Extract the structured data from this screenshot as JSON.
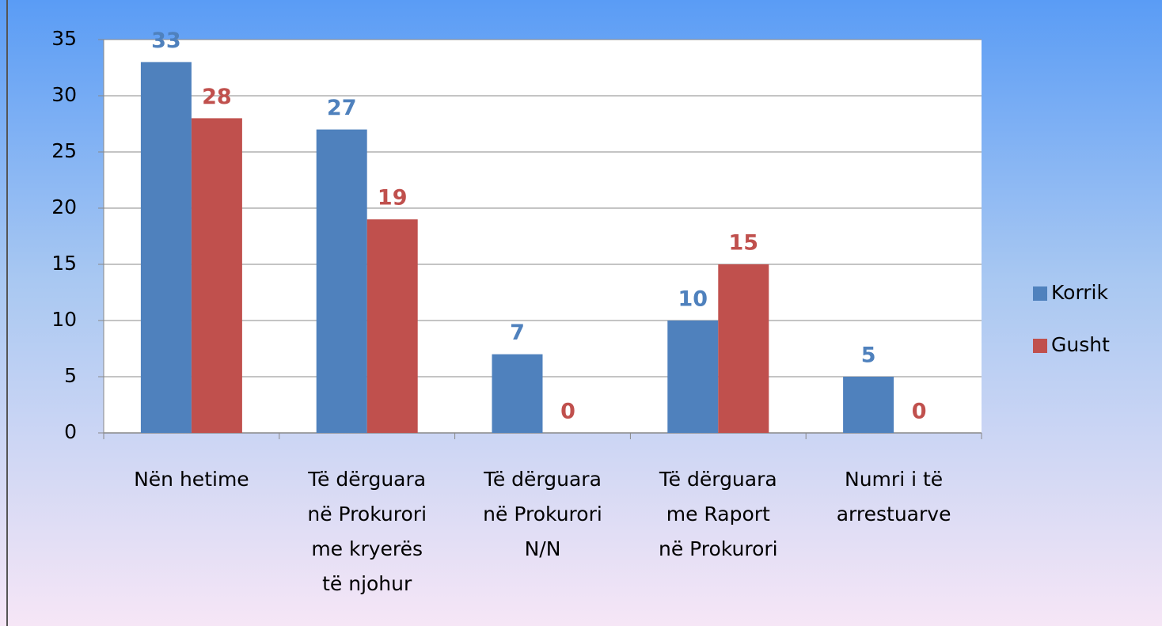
{
  "chart_data": {
    "type": "bar",
    "categories": [
      [
        "Nën hetime"
      ],
      [
        "Të dërguara",
        "në Prokurori",
        "me kryerës",
        "të njohur"
      ],
      [
        "Të dërguara",
        "në Prokurori",
        "N/N"
      ],
      [
        "Të dërguara",
        "me Raport",
        "në Prokurori"
      ],
      [
        "Numri i të",
        "arrestuarve"
      ]
    ],
    "series": [
      {
        "name": "Korrik",
        "color": "#4f81bd",
        "values": [
          33,
          27,
          7,
          10,
          5
        ]
      },
      {
        "name": "Gusht",
        "color": "#c0504d",
        "values": [
          28,
          19,
          0,
          15,
          0
        ]
      }
    ],
    "ylim": [
      0,
      35
    ],
    "yticks": [
      0,
      5,
      10,
      15,
      20,
      25,
      30,
      35
    ],
    "grid": true,
    "legend": "right"
  }
}
